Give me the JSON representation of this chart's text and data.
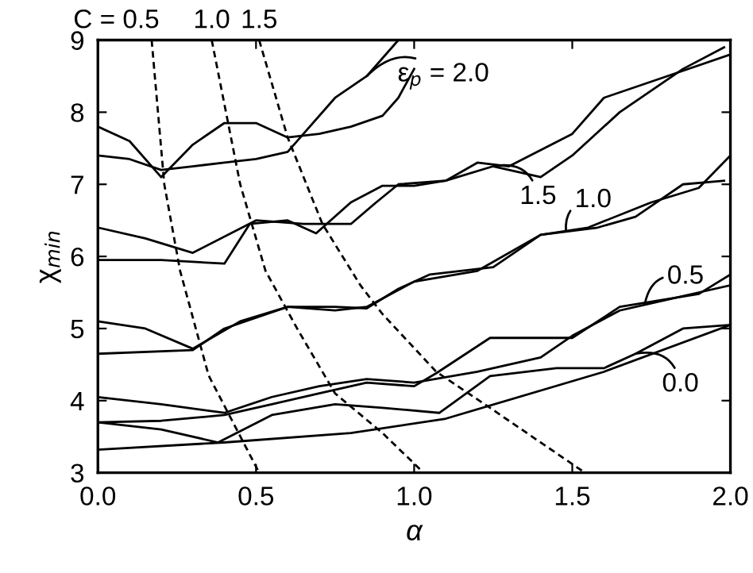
{
  "chart_data": {
    "type": "line",
    "xlabel": "α",
    "ylabel": "χ$_{min}$",
    "xlim": [
      0,
      2
    ],
    "ylim": [
      3,
      9
    ],
    "xticks": [
      {
        "value": 0,
        "label": "0.0"
      },
      {
        "value": 0.5,
        "label": "0.5"
      },
      {
        "value": 1,
        "label": "1.0"
      },
      {
        "value": 1.5,
        "label": "1.5"
      },
      {
        "value": 2,
        "label": "2.0"
      }
    ],
    "yticks": [
      3,
      4,
      5,
      6,
      7,
      8,
      9
    ],
    "grid": false,
    "marker": "none",
    "series": [
      {
        "color": "#000000",
        "line_style": "solid",
        "x": [
          0,
          0.1,
          0.2,
          0.3,
          0.4,
          0.5,
          0.6,
          0.7,
          0.8,
          0.9,
          0.95,
          1.0
        ],
        "values": [
          7.8,
          7.6,
          7.1,
          7.55,
          7.85,
          7.85,
          7.65,
          7.7,
          7.8,
          7.95,
          8.2,
          8.6
        ]
      },
      {
        "color": "#000000",
        "line_style": "solid",
        "x": [
          0,
          0.1,
          0.2,
          0.3,
          0.4,
          0.5,
          0.6,
          0.65,
          0.75,
          0.85,
          0.95
        ],
        "values": [
          7.4,
          7.35,
          7.2,
          7.25,
          7.3,
          7.35,
          7.45,
          7.7,
          8.2,
          8.5,
          9.0
        ]
      },
      {
        "color": "#000000",
        "line_style": "solid",
        "x": [
          0,
          0.2,
          0.4,
          0.48,
          0.6,
          0.69,
          0.8,
          0.9,
          1.0,
          1.1,
          1.25,
          1.4,
          1.5,
          1.65,
          1.75,
          1.85,
          1.98
        ],
        "values": [
          5.95,
          5.95,
          5.9,
          6.45,
          6.5,
          6.32,
          6.75,
          6.98,
          6.98,
          7.05,
          7.25,
          7.1,
          7.4,
          8.0,
          8.3,
          8.6,
          8.9
        ]
      },
      {
        "color": "#000000",
        "line_style": "solid",
        "x": [
          0,
          0.15,
          0.3,
          0.5,
          0.65,
          0.8,
          0.88,
          0.95,
          1.1,
          1.2,
          1.3,
          1.5,
          1.6,
          1.8,
          2.0
        ],
        "values": [
          6.4,
          6.25,
          6.05,
          6.5,
          6.45,
          6.45,
          6.75,
          7.0,
          7.05,
          7.3,
          7.25,
          7.7,
          8.2,
          8.5,
          8.8
        ]
      },
      {
        "color": "#000000",
        "line_style": "solid",
        "x": [
          0,
          0.15,
          0.3,
          0.45,
          0.6,
          0.75,
          0.85,
          0.95,
          1.05,
          1.25,
          1.4,
          1.58,
          1.7,
          1.85,
          1.98
        ],
        "values": [
          5.1,
          5.0,
          4.72,
          5.1,
          5.3,
          5.3,
          5.28,
          5.55,
          5.75,
          5.85,
          6.3,
          6.4,
          6.55,
          7.0,
          7.05
        ]
      },
      {
        "color": "#000000",
        "line_style": "solid",
        "x": [
          0,
          0.3,
          0.4,
          0.6,
          0.75,
          0.85,
          1.0,
          1.2,
          1.4,
          1.55,
          1.75,
          1.9,
          2.0
        ],
        "values": [
          4.65,
          4.7,
          5.0,
          5.3,
          5.25,
          5.3,
          5.65,
          5.8,
          6.3,
          6.4,
          6.75,
          6.95,
          7.4
        ]
      },
      {
        "color": "#000000",
        "line_style": "solid",
        "x": [
          0,
          0.2,
          0.4,
          0.55,
          0.7,
          0.85,
          1.0,
          1.07,
          1.24,
          1.5,
          1.65,
          1.9,
          2.0
        ],
        "values": [
          3.7,
          3.72,
          3.8,
          3.95,
          4.1,
          4.25,
          4.2,
          4.38,
          4.87,
          4.87,
          5.3,
          5.48,
          5.75
        ]
      },
      {
        "color": "#000000",
        "line_style": "solid",
        "x": [
          0,
          0.2,
          0.4,
          0.55,
          0.7,
          0.85,
          1.0,
          1.2,
          1.4,
          1.5,
          1.65,
          1.8,
          1.9,
          2.0
        ],
        "values": [
          4.05,
          3.95,
          3.83,
          4.05,
          4.2,
          4.3,
          4.25,
          4.4,
          4.6,
          4.9,
          5.25,
          5.4,
          5.5,
          5.6
        ]
      },
      {
        "color": "#000000",
        "line_style": "solid",
        "x": [
          0,
          0.2,
          0.38,
          0.55,
          0.75,
          0.9,
          1.08,
          1.24,
          1.45,
          1.6,
          1.7,
          1.85,
          2.0
        ],
        "values": [
          3.7,
          3.6,
          3.42,
          3.8,
          3.95,
          3.9,
          3.83,
          4.34,
          4.45,
          4.45,
          4.65,
          5.0,
          5.05
        ]
      },
      {
        "color": "#000000",
        "line_style": "solid",
        "x": [
          0,
          0.4,
          0.8,
          1.1,
          1.6,
          2.0
        ],
        "values": [
          3.32,
          3.42,
          3.55,
          3.75,
          4.4,
          5.05
        ]
      },
      {
        "color": "#000000",
        "line_style": "dashed",
        "x": [
          0.17,
          0.21,
          0.26,
          0.35,
          0.51
        ],
        "values": [
          9,
          7.0,
          5.8,
          4.35,
          3
        ]
      },
      {
        "color": "#000000",
        "line_style": "dashed",
        "x": [
          0.36,
          0.45,
          0.53,
          0.63,
          0.75,
          0.9,
          1.03
        ],
        "values": [
          9,
          7.0,
          5.8,
          5.0,
          4.1,
          3.55,
          3
        ]
      },
      {
        "color": "#000000",
        "line_style": "dashed",
        "x": [
          0.51,
          0.6,
          0.71,
          0.83,
          0.9,
          1.07,
          1.24,
          1.54
        ],
        "values": [
          9,
          7.65,
          6.45,
          5.6,
          5.2,
          4.4,
          3.9,
          3.0
        ]
      }
    ],
    "annotations": [
      {
        "text": "C = 0.5",
        "x": 0.17,
        "y": 9
      },
      {
        "text": "1.0",
        "x": 0.36,
        "y": 9
      },
      {
        "text": "1.5",
        "x": 0.51,
        "y": 9
      },
      {
        "text": "ε$_{p}$ = 2.0",
        "x": 0.85,
        "y": 8.5
      },
      {
        "text": "1.5",
        "x": 1.25,
        "y": 7.25
      },
      {
        "text": "1.0",
        "x": 1.48,
        "y": 6.35
      },
      {
        "text": "0.5",
        "x": 1.73,
        "y": 5.35
      },
      {
        "text": "0.0",
        "x": 1.7,
        "y": 4.65
      }
    ]
  }
}
